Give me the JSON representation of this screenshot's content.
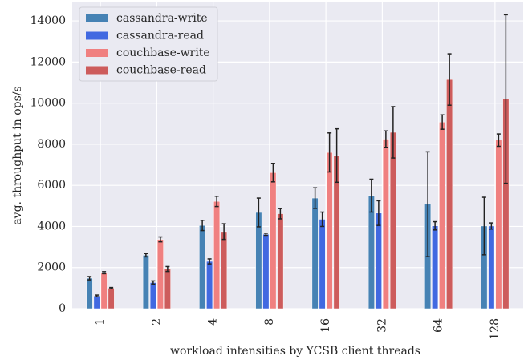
{
  "chart_data": {
    "type": "bar",
    "xlabel": "workload intensities by YCSB client threads",
    "ylabel": "avg. throughput in ops/s",
    "categories": [
      "1",
      "2",
      "4",
      "8",
      "16",
      "32",
      "64",
      "128"
    ],
    "series": [
      {
        "name": "cassandra-write",
        "color": "#4682b4",
        "values": [
          1480,
          2600,
          4050,
          4680,
          5380,
          5500,
          5080,
          4020
        ],
        "errors": [
          80,
          80,
          250,
          700,
          500,
          800,
          2550,
          1400
        ]
      },
      {
        "name": "cassandra-read",
        "color": "#4169e1",
        "values": [
          620,
          1270,
          2300,
          3620,
          4350,
          4650,
          4030,
          4020
        ],
        "errors": [
          40,
          80,
          120,
          50,
          350,
          600,
          200,
          150
        ]
      },
      {
        "name": "couchbase-write",
        "color": "#f08080",
        "values": [
          1750,
          3370,
          5220,
          6620,
          7600,
          8250,
          9080,
          8200
        ],
        "errors": [
          50,
          120,
          250,
          450,
          950,
          400,
          350,
          300
        ]
      },
      {
        "name": "couchbase-read",
        "color": "#cd5c5c",
        "values": [
          1000,
          1930,
          3750,
          4620,
          7450,
          8580,
          11150,
          10200
        ],
        "errors": [
          30,
          120,
          380,
          250,
          1300,
          1250,
          1250,
          4100
        ]
      }
    ],
    "ylim": [
      0,
      14900
    ],
    "yticks": [
      0,
      2000,
      4000,
      6000,
      8000,
      10000,
      12000,
      14000
    ],
    "grid": true,
    "legend": "upper left"
  }
}
